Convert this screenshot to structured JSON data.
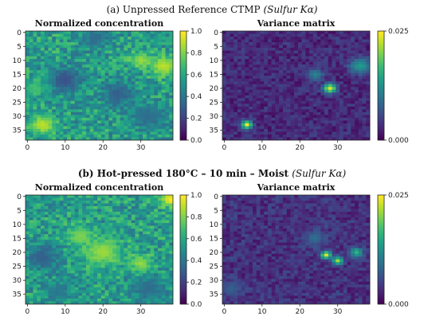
{
  "figure": {
    "row_a_title_main": "(a) Unpressed Reference CTMP ",
    "row_a_title_em": "(Sulfur Kα)",
    "row_b_title_main": "(b) Hot-pressed 180°C – 10 min – Moist ",
    "row_b_title_em": "(Sulfur Kα)"
  },
  "colormap": {
    "name": "viridis",
    "stops": [
      "#440154",
      "#482878",
      "#3e4989",
      "#31688e",
      "#26828e",
      "#1f9e89",
      "#35b779",
      "#6ece58",
      "#b5de2b",
      "#fde725"
    ]
  },
  "chart_data": [
    {
      "type": "heatmap",
      "title": "Normalized concentration",
      "grid_size": 39,
      "xlim": [
        0,
        38
      ],
      "ylim": [
        38,
        0
      ],
      "xticks": [
        "0",
        "10",
        "20",
        "30"
      ],
      "yticks": [
        "0",
        "5",
        "10",
        "15",
        "20",
        "25",
        "30",
        "35"
      ],
      "colorbar": {
        "range": [
          0.0,
          1.0
        ],
        "ticks": [
          "0.0",
          "0.2",
          "0.4",
          "0.6",
          "0.8",
          "1.0"
        ]
      },
      "baseline": 0.55,
      "hotspots": [
        {
          "x": 36,
          "y": 12,
          "value": 0.9,
          "spread": 2.5
        },
        {
          "x": 30,
          "y": 10,
          "value": 0.85,
          "spread": 2.0
        },
        {
          "x": 4,
          "y": 33,
          "value": 0.9,
          "spread": 2.5
        },
        {
          "x": 10,
          "y": 17,
          "value": 0.25,
          "spread": 3.0
        },
        {
          "x": 18,
          "y": 2,
          "value": 0.35,
          "spread": 2.5
        },
        {
          "x": 24,
          "y": 22,
          "value": 0.3,
          "spread": 3.0
        },
        {
          "x": 32,
          "y": 30,
          "value": 0.35,
          "spread": 3.0
        },
        {
          "x": 2,
          "y": 20,
          "value": 0.7,
          "spread": 2.0
        }
      ]
    },
    {
      "type": "heatmap",
      "title": "Variance matrix",
      "grid_size": 39,
      "xlim": [
        0,
        38
      ],
      "ylim": [
        38,
        0
      ],
      "xticks": [
        "0",
        "10",
        "20",
        "30"
      ],
      "yticks": [
        "0",
        "5",
        "10",
        "15",
        "20",
        "25",
        "30",
        "35"
      ],
      "colorbar": {
        "range": [
          0.0,
          0.025
        ],
        "ticks": [
          "0.000",
          "0.025"
        ]
      },
      "baseline": 0.12,
      "hotspots": [
        {
          "x": 28,
          "y": 20,
          "value": 0.95,
          "spread": 1.2
        },
        {
          "x": 6,
          "y": 33,
          "value": 1.0,
          "spread": 1.0
        },
        {
          "x": 36,
          "y": 12,
          "value": 0.55,
          "spread": 2.0
        },
        {
          "x": 24,
          "y": 15,
          "value": 0.45,
          "spread": 1.5
        }
      ]
    },
    {
      "type": "heatmap",
      "title": "Normalized concentration",
      "grid_size": 39,
      "xlim": [
        0,
        38
      ],
      "ylim": [
        38,
        0
      ],
      "xticks": [
        "0",
        "10",
        "20",
        "30"
      ],
      "yticks": [
        "0",
        "5",
        "10",
        "15",
        "20",
        "25",
        "30",
        "35"
      ],
      "colorbar": {
        "range": [
          0.0,
          1.0
        ],
        "ticks": [
          "0.0",
          "0.2",
          "0.4",
          "0.6",
          "0.8",
          "1.0"
        ]
      },
      "baseline": 0.55,
      "hotspots": [
        {
          "x": 38,
          "y": 1,
          "value": 1.0,
          "spread": 2.0
        },
        {
          "x": 20,
          "y": 20,
          "value": 0.85,
          "spread": 3.5
        },
        {
          "x": 14,
          "y": 14,
          "value": 0.8,
          "spread": 2.5
        },
        {
          "x": 30,
          "y": 24,
          "value": 0.85,
          "spread": 2.0
        },
        {
          "x": 4,
          "y": 22,
          "value": 0.3,
          "spread": 3.0
        },
        {
          "x": 32,
          "y": 33,
          "value": 0.35,
          "spread": 3.0
        },
        {
          "x": 8,
          "y": 34,
          "value": 0.4,
          "spread": 2.5
        }
      ]
    },
    {
      "type": "heatmap",
      "title": "Variance matrix",
      "grid_size": 39,
      "xlim": [
        0,
        38
      ],
      "ylim": [
        38,
        0
      ],
      "xticks": [
        "0",
        "10",
        "20",
        "30"
      ],
      "yticks": [
        "0",
        "5",
        "10",
        "15",
        "20",
        "25",
        "30",
        "35"
      ],
      "colorbar": {
        "range": [
          0.0,
          0.025
        ],
        "ticks": [
          "0.000",
          "0.025"
        ]
      },
      "baseline": 0.14,
      "hotspots": [
        {
          "x": 27,
          "y": 21,
          "value": 0.95,
          "spread": 1.0
        },
        {
          "x": 30,
          "y": 23,
          "value": 0.85,
          "spread": 1.0
        },
        {
          "x": 35,
          "y": 20,
          "value": 0.65,
          "spread": 1.2
        },
        {
          "x": 24,
          "y": 15,
          "value": 0.35,
          "spread": 2.0
        },
        {
          "x": 2,
          "y": 33,
          "value": 0.3,
          "spread": 2.0
        }
      ]
    }
  ]
}
